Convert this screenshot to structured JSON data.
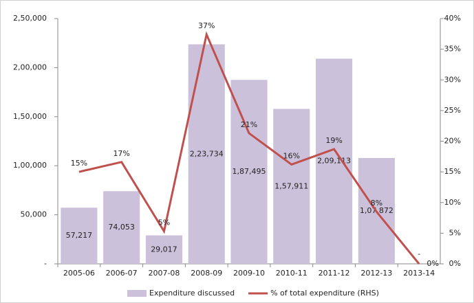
{
  "chart_data": {
    "type": "bar-line",
    "categories": [
      "2005-06",
      "2006-07",
      "2007-08",
      "2008-09",
      "2009-10",
      "2010-11",
      "2011-12",
      "2012-13",
      "2013-14"
    ],
    "series": [
      {
        "name": "Expenditure discussed",
        "type": "bar",
        "color": "#ccc1da",
        "values": [
          57217,
          74053,
          29017,
          223734,
          187495,
          157911,
          209113,
          107872,
          0
        ],
        "value_labels": [
          "57,217",
          "74,053",
          "29,017",
          "2,23,734",
          "1,87,495",
          "1,57,911",
          "2,09,113",
          "1,07,872",
          "-"
        ]
      },
      {
        "name": "% of total expenditure (RHS)",
        "type": "line",
        "axis": "y2",
        "color": "#c0504d",
        "values": [
          15,
          16.6,
          5.3,
          37.4,
          21.3,
          16.2,
          18.7,
          8.5,
          0
        ],
        "value_labels": [
          "15%",
          "17%",
          "5%",
          "37%",
          "21%",
          "16%",
          "19%",
          "8%",
          "0%"
        ]
      }
    ],
    "ylim": [
      0,
      250000
    ],
    "yticks": [
      {
        "value": 0,
        "label": "-"
      },
      {
        "value": 50000,
        "label": "50,000"
      },
      {
        "value": 100000,
        "label": "1,00,000"
      },
      {
        "value": 150000,
        "label": "1,50,000"
      },
      {
        "value": 200000,
        "label": "2,00,000"
      },
      {
        "value": 250000,
        "label": "2,50,000"
      }
    ],
    "y2lim": [
      0,
      40
    ],
    "y2ticks": [
      {
        "value": 0,
        "label": "0%"
      },
      {
        "value": 5,
        "label": "5%"
      },
      {
        "value": 10,
        "label": "10%"
      },
      {
        "value": 15,
        "label": "15%"
      },
      {
        "value": 20,
        "label": "20%"
      },
      {
        "value": 25,
        "label": "25%"
      },
      {
        "value": 30,
        "label": "30%"
      },
      {
        "value": 35,
        "label": "35%"
      },
      {
        "value": 40,
        "label": "40%"
      }
    ],
    "legend": "bottom"
  }
}
